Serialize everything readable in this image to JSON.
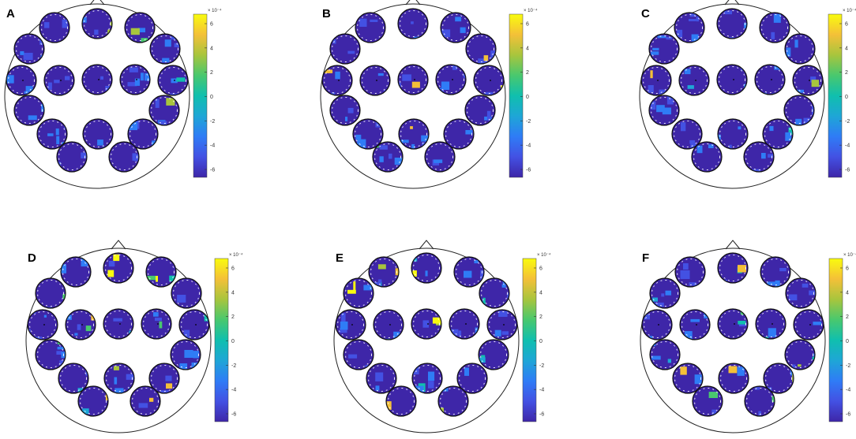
{
  "figure": {
    "colorbar": {
      "exponent_label": "× 10⁻⁴",
      "tick_labels": [
        "6",
        "4",
        "2",
        "0",
        "-2",
        "-4",
        "-6"
      ],
      "colormap": [
        "#3e26a8",
        "#4351e3",
        "#2f7cf6",
        "#1ea6d6",
        "#10bfae",
        "#49c86e",
        "#a8c53d",
        "#f4c038",
        "#f9fb0e"
      ]
    },
    "panels": [
      {
        "letter": "A"
      },
      {
        "letter": "B"
      },
      {
        "letter": "C"
      },
      {
        "letter": "D"
      },
      {
        "letter": "E"
      },
      {
        "letter": "F"
      }
    ]
  }
}
